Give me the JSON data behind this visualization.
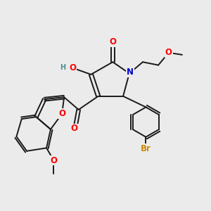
{
  "background_color": "#ebebeb",
  "bond_color": "#1a1a1a",
  "bond_width": 1.4,
  "atom_colors": {
    "O": "#ff0000",
    "N": "#0000cc",
    "Br": "#cc8800",
    "H": "#4a9090",
    "C": "#1a1a1a"
  },
  "font_size_atom": 8.5,
  "font_size_small": 7.0
}
